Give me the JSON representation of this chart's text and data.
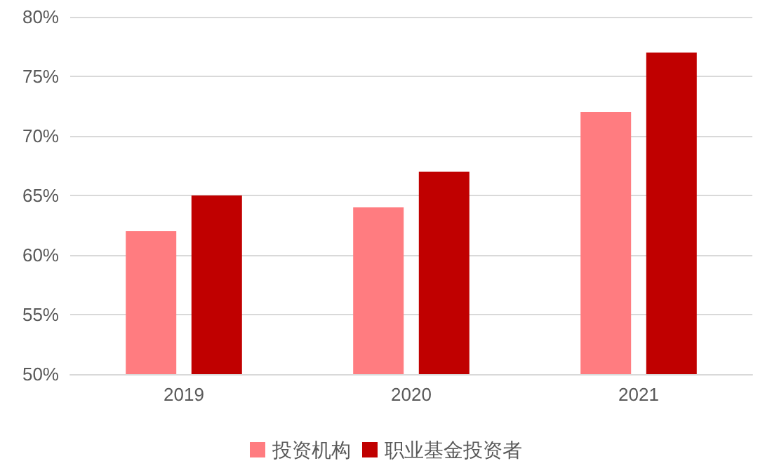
{
  "chart_data": {
    "type": "bar",
    "categories": [
      "2019",
      "2020",
      "2021"
    ],
    "series": [
      {
        "name": "投资机构",
        "color": "#ff7c80",
        "values": [
          62,
          64,
          72
        ]
      },
      {
        "name": "职业基金投资者",
        "color": "#c00000",
        "values": [
          65,
          67,
          77
        ]
      }
    ],
    "ylim": [
      50,
      80
    ],
    "yticks": [
      {
        "value": 50,
        "label": "50%"
      },
      {
        "value": 55,
        "label": "55%"
      },
      {
        "value": 60,
        "label": "60%"
      },
      {
        "value": 65,
        "label": "65%"
      },
      {
        "value": 70,
        "label": "70%"
      },
      {
        "value": 75,
        "label": "75%"
      },
      {
        "value": 80,
        "label": "80%"
      }
    ],
    "grid": "y",
    "legend": "bottom"
  }
}
